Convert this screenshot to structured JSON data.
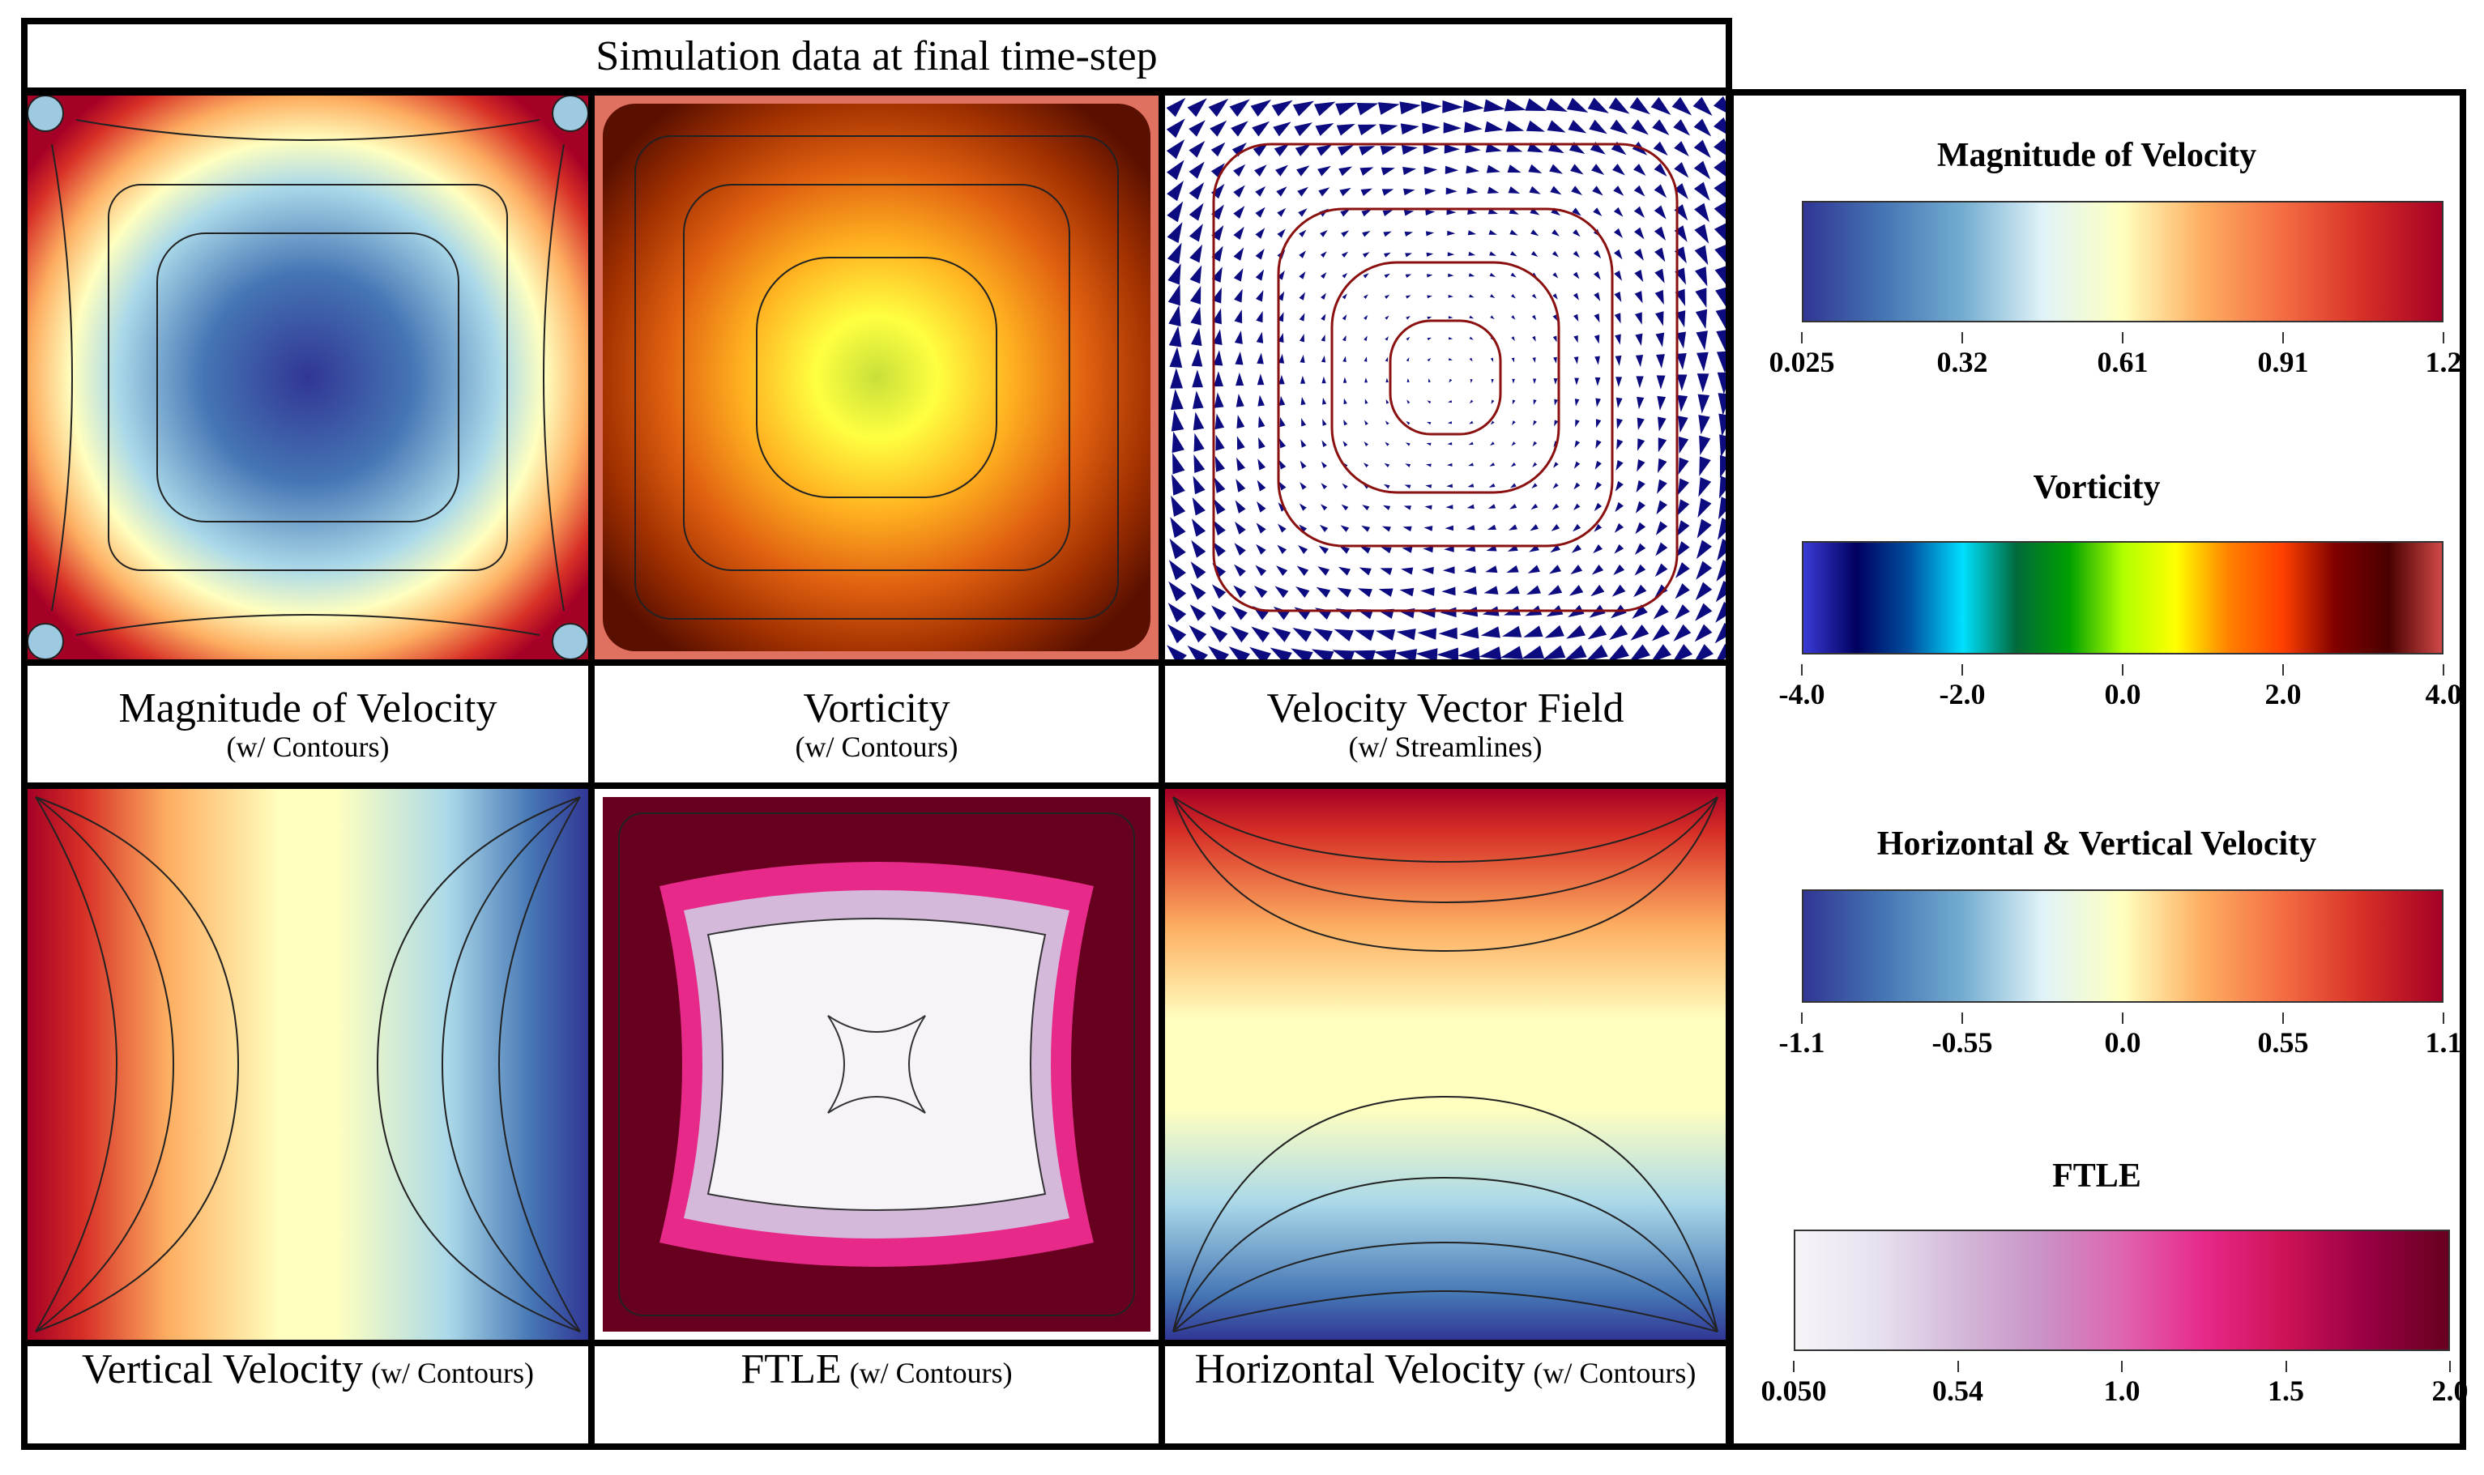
{
  "header": {
    "title": "Simulation data at final time-step"
  },
  "panels": [
    {
      "main": "Magnitude of Velocity",
      "sub": "(w/ Contours)"
    },
    {
      "main": "Vorticity",
      "sub": "(w/ Contours)"
    },
    {
      "main": "Velocity Vector Field",
      "sub": "(w/ Streamlines)"
    },
    {
      "main": "Vertical Velocity",
      "sub": "(w/ Contours)"
    },
    {
      "main": "FTLE",
      "sub": "(w/ Contours)"
    },
    {
      "main": "Horizontal Velocity",
      "sub": "(w/ Contours)"
    }
  ],
  "colorbars": [
    {
      "title": "Magnitude of Velocity",
      "ticks": [
        "0.025",
        "0.32",
        "0.61",
        "0.91",
        "1.2"
      ],
      "colors": [
        "#313695",
        "#4575b4",
        "#74add1",
        "#e0f3f8",
        "#ffffbf",
        "#fdae61",
        "#f46d43",
        "#d73027",
        "#a50026"
      ]
    },
    {
      "title": "Vorticity",
      "ticks": [
        "-4.0",
        "-2.0",
        "0.0",
        "2.0",
        "4.0"
      ],
      "colors": [
        "#3b3bd6",
        "#000060",
        "#0050a0",
        "#00e0ff",
        "#006a3a",
        "#00a000",
        "#b0ff00",
        "#ffff00",
        "#ff8000",
        "#ff4000",
        "#800000",
        "#4a0000",
        "#d04848"
      ]
    },
    {
      "title": "Horizontal & Vertical Velocity",
      "ticks": [
        "-1.1",
        "-0.55",
        "0.0",
        "0.55",
        "1.1"
      ],
      "colors": [
        "#313695",
        "#4575b4",
        "#74add1",
        "#e0f3f8",
        "#ffffbf",
        "#fdae61",
        "#f46d43",
        "#d73027",
        "#a50026"
      ]
    },
    {
      "title": "FTLE",
      "ticks": [
        "0.050",
        "0.54",
        "1.0",
        "1.5",
        "2.0"
      ],
      "colors": [
        "#f7f4f9",
        "#e7e1ef",
        "#d4b9da",
        "#c994c7",
        "#df65b0",
        "#e7298a",
        "#ce1256",
        "#980043",
        "#67001f"
      ]
    }
  ]
}
